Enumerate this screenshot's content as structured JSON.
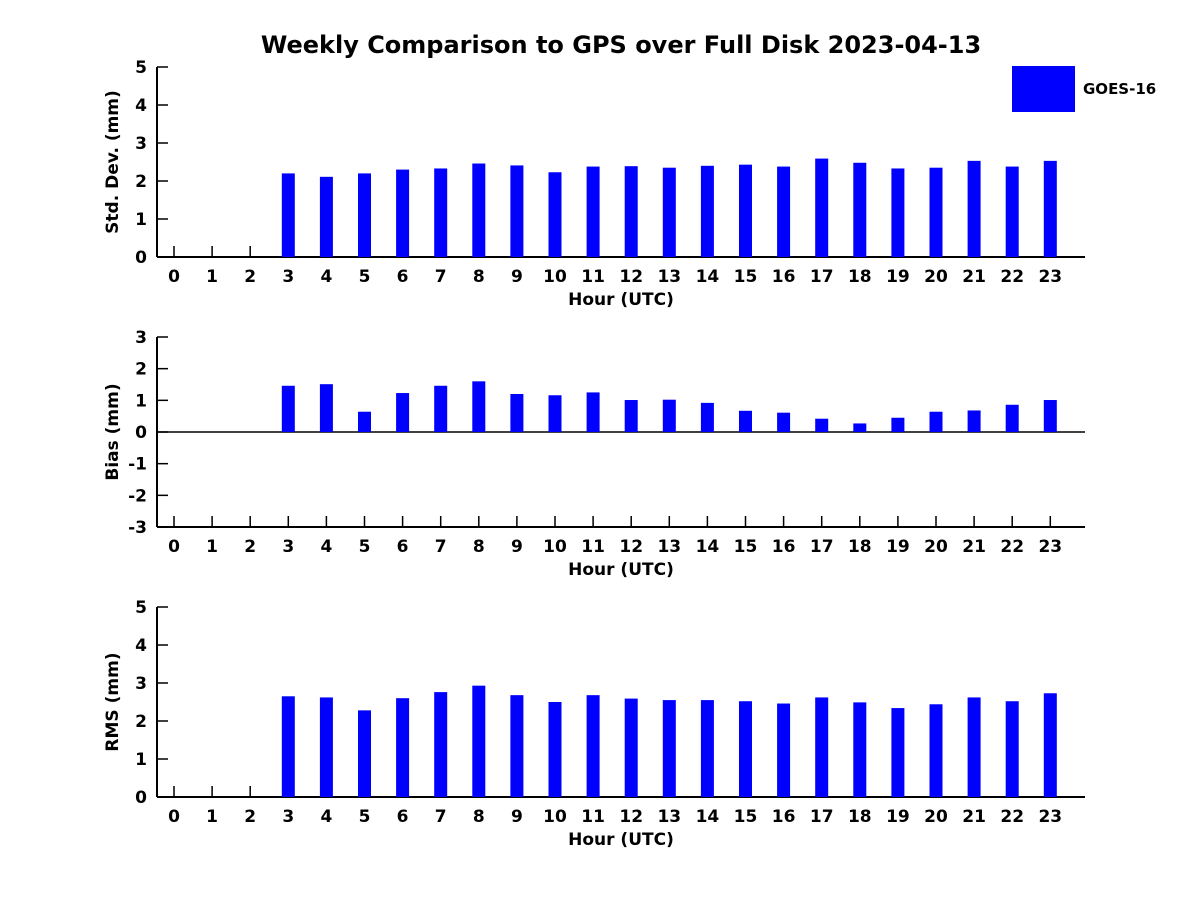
{
  "title": "Weekly Comparison to GPS over Full Disk 2023-04-13",
  "legend": {
    "label": "GOES-16",
    "color": "#0000ff"
  },
  "colors": {
    "bar": "#0000ff",
    "axis": "#000000",
    "background": "#ffffff"
  },
  "chart_data": [
    {
      "id": "std-dev",
      "type": "bar",
      "ylabel": "Std. Dev. (mm)",
      "xlabel": "Hour (UTC)",
      "ylim": [
        0,
        5
      ],
      "yticks": [
        0,
        1,
        2,
        3,
        4,
        5
      ],
      "grid": false,
      "legend_position": "upper right outside",
      "categories": [
        0,
        1,
        2,
        3,
        4,
        5,
        6,
        7,
        8,
        9,
        10,
        11,
        12,
        13,
        14,
        15,
        16,
        17,
        18,
        19,
        20,
        21,
        22,
        23
      ],
      "series": [
        {
          "name": "GOES-16",
          "color": "#0000ff",
          "values": [
            null,
            null,
            null,
            2.2,
            2.11,
            2.2,
            2.3,
            2.33,
            2.46,
            2.41,
            2.23,
            2.38,
            2.39,
            2.35,
            2.4,
            2.43,
            2.38,
            2.59,
            2.48,
            2.33,
            2.35,
            2.53,
            2.38,
            2.53
          ]
        }
      ]
    },
    {
      "id": "bias",
      "type": "bar",
      "ylabel": "Bias (mm)",
      "xlabel": "Hour (UTC)",
      "ylim": [
        -3,
        3
      ],
      "yticks": [
        -3,
        -2,
        -1,
        0,
        1,
        2,
        3
      ],
      "grid": false,
      "zero_line": true,
      "categories": [
        0,
        1,
        2,
        3,
        4,
        5,
        6,
        7,
        8,
        9,
        10,
        11,
        12,
        13,
        14,
        15,
        16,
        17,
        18,
        19,
        20,
        21,
        22,
        23
      ],
      "series": [
        {
          "name": "GOES-16",
          "color": "#0000ff",
          "values": [
            null,
            null,
            null,
            1.46,
            1.51,
            0.64,
            1.23,
            1.46,
            1.6,
            1.2,
            1.16,
            1.25,
            1.01,
            1.02,
            0.92,
            0.67,
            0.61,
            0.42,
            0.27,
            0.45,
            0.64,
            0.68,
            0.86,
            1.01
          ]
        }
      ]
    },
    {
      "id": "rms",
      "type": "bar",
      "ylabel": "RMS (mm)",
      "xlabel": "Hour (UTC)",
      "ylim": [
        0,
        5
      ],
      "yticks": [
        0,
        1,
        2,
        3,
        4,
        5
      ],
      "grid": false,
      "categories": [
        0,
        1,
        2,
        3,
        4,
        5,
        6,
        7,
        8,
        9,
        10,
        11,
        12,
        13,
        14,
        15,
        16,
        17,
        18,
        19,
        20,
        21,
        22,
        23
      ],
      "series": [
        {
          "name": "GOES-16",
          "color": "#0000ff",
          "values": [
            null,
            null,
            null,
            2.65,
            2.62,
            2.28,
            2.6,
            2.76,
            2.93,
            2.68,
            2.5,
            2.68,
            2.59,
            2.55,
            2.55,
            2.52,
            2.46,
            2.62,
            2.49,
            2.34,
            2.44,
            2.62,
            2.52,
            2.73
          ]
        }
      ]
    }
  ]
}
